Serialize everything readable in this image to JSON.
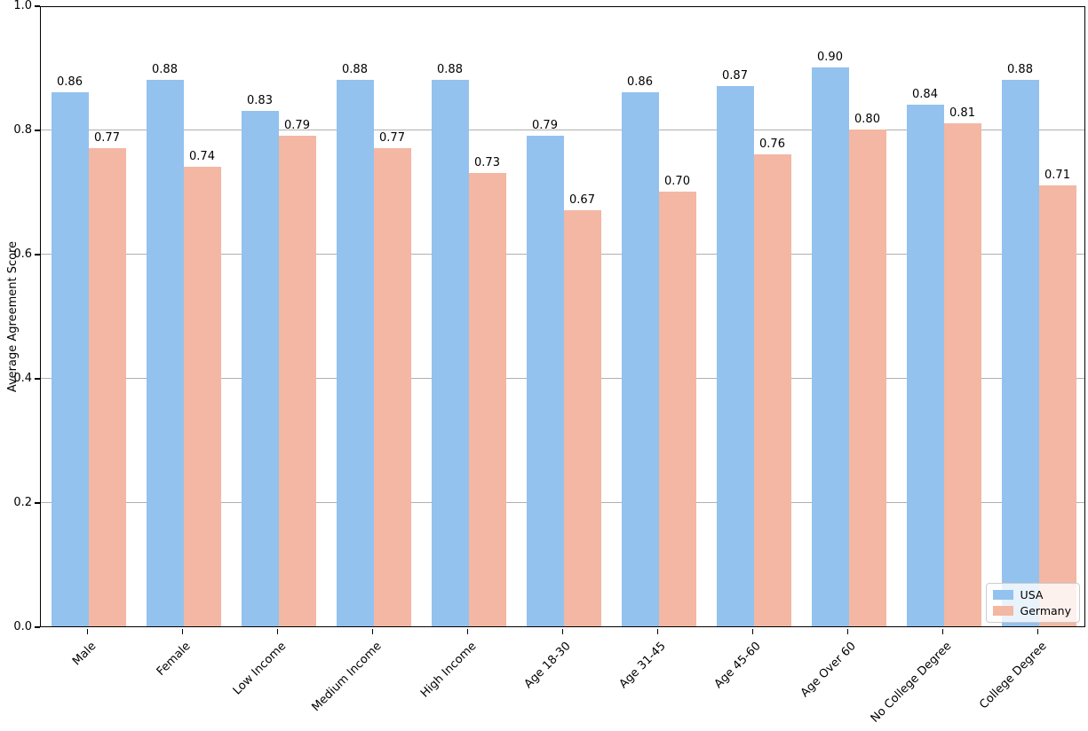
{
  "chart_data": {
    "type": "bar",
    "title": "",
    "xlabel": "",
    "ylabel": "Average Agreement Score",
    "categories": [
      "Male",
      "Female",
      "Low Income",
      "Medium Income",
      "High Income",
      "Age 18-30",
      "Age 31-45",
      "Age 45-60",
      "Age Over 60",
      "No College Degree",
      "College Degree"
    ],
    "series": [
      {
        "name": "USA",
        "color": "#93c2ee",
        "values": [
          0.86,
          0.88,
          0.83,
          0.88,
          0.88,
          0.79,
          0.86,
          0.87,
          0.9,
          0.84,
          0.88
        ]
      },
      {
        "name": "Germany",
        "color": "#f3b7a3",
        "values": [
          0.77,
          0.74,
          0.79,
          0.77,
          0.73,
          0.67,
          0.7,
          0.76,
          0.8,
          0.81,
          0.71
        ]
      }
    ],
    "bar_value_labels": [
      "0.86",
      "0.77",
      "0.88",
      "0.74",
      "0.83",
      "0.79",
      "0.88",
      "0.77",
      "0.88",
      "0.73",
      "0.79",
      "0.67",
      "0.86",
      "0.70",
      "0.87",
      "0.76",
      "0.90",
      "0.80",
      "0.84",
      "0.81",
      "0.88",
      "0.71"
    ],
    "ylim": [
      0.0,
      1.0
    ],
    "ytick_labels": [
      "0.0",
      "0.2",
      "0.4",
      "0.6",
      "0.8",
      "1.0"
    ],
    "grid": "horizontal",
    "gridline_color": "#b0b0b0",
    "legend": {
      "position": "lower-right",
      "entries": [
        "USA",
        "Germany"
      ]
    }
  }
}
